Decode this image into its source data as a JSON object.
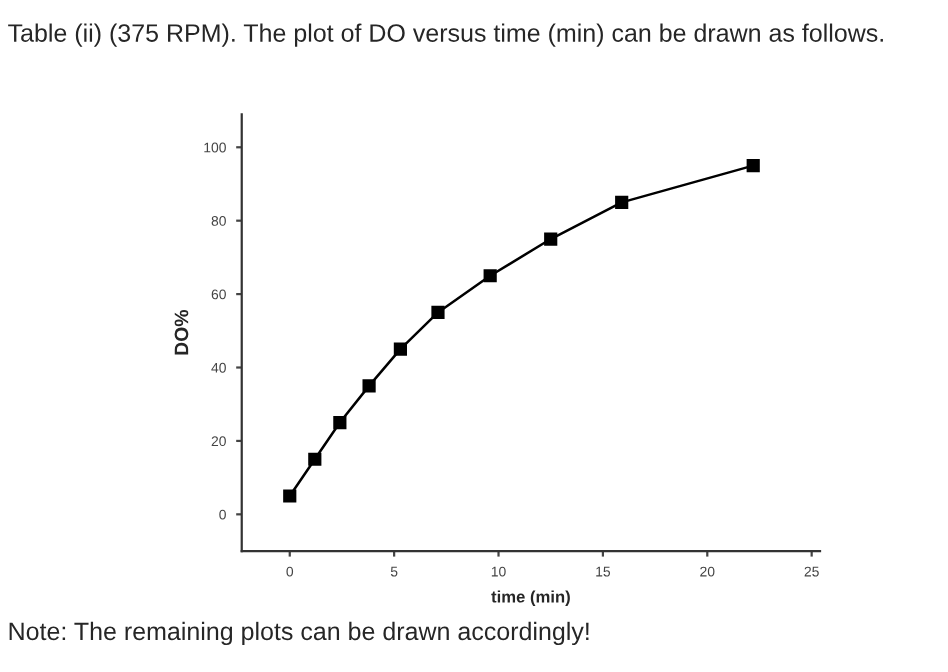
{
  "chart_data": {
    "type": "line",
    "title": "Table (ii) (375 RPM). The plot of DO versus time (min) can be drawn as follows.",
    "xlabel": "time (min)",
    "ylabel": "DO%",
    "x": [
      0,
      1.2,
      2.4,
      3.8,
      5.3,
      7.1,
      9.6,
      12.5,
      15.9,
      22.2
    ],
    "series": [
      {
        "color": "#000000",
        "values": [
          5,
          15,
          25,
          35,
          45,
          55,
          65,
          75,
          85,
          95
        ]
      }
    ],
    "xlim": [
      -2.3,
      25.4
    ],
    "ylim": [
      -10,
      109
    ],
    "xticks": [
      0,
      5,
      10,
      15,
      20,
      25
    ],
    "yticks": [
      0,
      20,
      40,
      60,
      80,
      100
    ],
    "marker": "square",
    "line_style": "solid",
    "grid": false,
    "legend": false,
    "annotations": [
      "Note: The remaining plots can be drawn accordingly!"
    ]
  }
}
